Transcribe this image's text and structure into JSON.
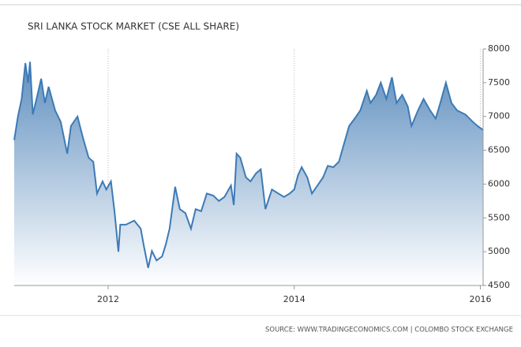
{
  "chart_data": {
    "type": "area",
    "title": "SRI LANKA STOCK MARKET (CSE ALL SHARE)",
    "source": "SOURCE: WWW.TRADINGECONOMICS.COM | COLOMBO STOCK EXCHANGE",
    "x": [
      2010.99,
      2011.03,
      2011.07,
      2011.11,
      2011.14,
      2011.16,
      2011.19,
      2011.24,
      2011.28,
      2011.32,
      2011.36,
      2011.43,
      2011.49,
      2011.56,
      2011.6,
      2011.67,
      2011.73,
      2011.79,
      2011.84,
      2011.88,
      2011.94,
      2011.98,
      2012.03,
      2012.07,
      2012.11,
      2012.13,
      2012.19,
      2012.28,
      2012.35,
      2012.38,
      2012.43,
      2012.47,
      2012.52,
      2012.58,
      2012.62,
      2012.66,
      2012.72,
      2012.77,
      2012.83,
      2012.89,
      2012.94,
      2013.0,
      2013.06,
      2013.13,
      2013.19,
      2013.25,
      2013.32,
      2013.35,
      2013.38,
      2013.42,
      2013.48,
      2013.53,
      2013.59,
      2013.64,
      2013.69,
      2013.76,
      2013.83,
      2013.89,
      2013.95,
      2014.0,
      2014.04,
      2014.08,
      2014.14,
      2014.19,
      2014.25,
      2014.31,
      2014.36,
      2014.42,
      2014.48,
      2014.54,
      2014.59,
      2014.65,
      2014.71,
      2014.78,
      2014.82,
      2014.88,
      2014.93,
      2014.99,
      2015.05,
      2015.1,
      2015.16,
      2015.22,
      2015.26,
      2015.33,
      2015.39,
      2015.46,
      2015.52,
      2015.57,
      2015.63,
      2015.69,
      2015.75,
      2015.84,
      2015.92,
      2015.97,
      2016.03
    ],
    "series": [
      {
        "color": "#3d7ab5",
        "values": [
          6650,
          7000,
          7260,
          7790,
          7500,
          7810,
          7030,
          7320,
          7560,
          7200,
          7440,
          7090,
          6920,
          6450,
          6860,
          7000,
          6680,
          6390,
          6330,
          5860,
          6040,
          5920,
          6040,
          5570,
          5000,
          5400,
          5400,
          5460,
          5340,
          5110,
          4760,
          5010,
          4870,
          4930,
          5110,
          5340,
          5960,
          5630,
          5570,
          5340,
          5630,
          5600,
          5860,
          5830,
          5750,
          5810,
          5980,
          5690,
          6450,
          6390,
          6100,
          6040,
          6160,
          6220,
          5630,
          5920,
          5860,
          5810,
          5860,
          5920,
          6130,
          6250,
          6100,
          5860,
          5980,
          6100,
          6270,
          6250,
          6330,
          6620,
          6860,
          6970,
          7090,
          7380,
          7200,
          7320,
          7500,
          7260,
          7580,
          7200,
          7320,
          7150,
          6860,
          7090,
          7260,
          7090,
          6970,
          7200,
          7500,
          7200,
          7090,
          7030,
          6920,
          6860,
          6800
        ]
      }
    ],
    "xlim": [
      2010.99,
      2016.03
    ],
    "xticks": [
      2012,
      2014,
      2016
    ],
    "ylim": [
      4500,
      8000
    ],
    "yticks": [
      4500,
      5000,
      5500,
      6000,
      6500,
      7000,
      7500,
      8000
    ],
    "grid": "x"
  }
}
